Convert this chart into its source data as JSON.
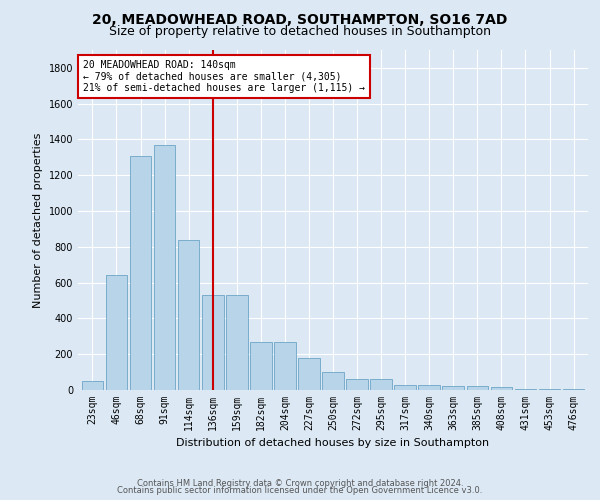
{
  "title_line1": "20, MEADOWHEAD ROAD, SOUTHAMPTON, SO16 7AD",
  "title_line2": "Size of property relative to detached houses in Southampton",
  "xlabel": "Distribution of detached houses by size in Southampton",
  "ylabel": "Number of detached properties",
  "categories": [
    "23sqm",
    "46sqm",
    "68sqm",
    "91sqm",
    "114sqm",
    "136sqm",
    "159sqm",
    "182sqm",
    "204sqm",
    "227sqm",
    "250sqm",
    "272sqm",
    "295sqm",
    "317sqm",
    "340sqm",
    "363sqm",
    "385sqm",
    "408sqm",
    "431sqm",
    "453sqm",
    "476sqm"
  ],
  "values": [
    50,
    640,
    1310,
    1370,
    840,
    530,
    530,
    270,
    270,
    180,
    100,
    60,
    60,
    30,
    30,
    25,
    20,
    15,
    5,
    5,
    5
  ],
  "bar_color": "#b8d4e8",
  "bar_edge_color": "#5a9abf",
  "highlight_index": 5,
  "highlight_color": "#cc0000",
  "annotation_text": "20 MEADOWHEAD ROAD: 140sqm\n← 79% of detached houses are smaller (4,305)\n21% of semi-detached houses are larger (1,115) →",
  "annotation_box_color": "#ffffff",
  "annotation_box_edge_color": "#cc0000",
  "vline_x_index": 5,
  "ylim": [
    0,
    1900
  ],
  "yticks": [
    0,
    200,
    400,
    600,
    800,
    1000,
    1200,
    1400,
    1600,
    1800
  ],
  "footer_line1": "Contains HM Land Registry data © Crown copyright and database right 2024.",
  "footer_line2": "Contains public sector information licensed under the Open Government Licence v3.0.",
  "background_color": "#dce9f5",
  "plot_bg_color": "#dce9f5",
  "title_fontsize": 10,
  "subtitle_fontsize": 9,
  "xlabel_fontsize": 8,
  "ylabel_fontsize": 8,
  "tick_fontsize": 7,
  "footer_fontsize": 6,
  "bar_width": 0.9
}
